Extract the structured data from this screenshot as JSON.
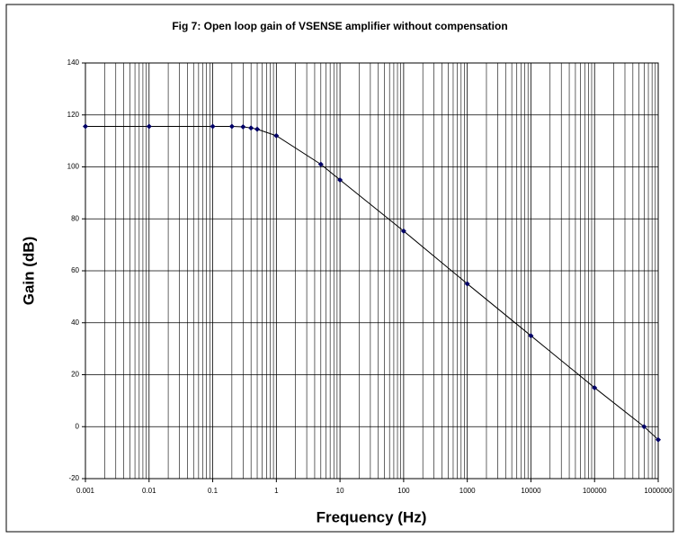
{
  "chart_data": {
    "type": "line",
    "title": "Fig 7: Open loop gain of VSENSE amplifier without compensation",
    "xlabel": "Frequency (Hz)",
    "ylabel": "Gain (dB)",
    "x": [
      0.001,
      0.01,
      0.1,
      0.2,
      0.3,
      0.4,
      0.5,
      1,
      5,
      10,
      100,
      1000,
      10000,
      100000,
      600000,
      1000000
    ],
    "series": [
      {
        "name": "Gain",
        "color": "#000000",
        "marker_color": "#000066",
        "values": [
          115.6,
          115.6,
          115.6,
          115.6,
          115.4,
          115,
          114.5,
          112,
          101,
          95,
          75.3,
          55,
          35,
          15,
          0,
          -5
        ]
      }
    ],
    "xscale": "log",
    "xlim": [
      0.001,
      1000000
    ],
    "xticks": [
      0.001,
      0.01,
      0.1,
      1,
      10,
      100,
      1000,
      10000,
      100000,
      1000000
    ],
    "ylim": [
      -20,
      140
    ],
    "yticks": [
      -20,
      0,
      20,
      40,
      60,
      80,
      100,
      120,
      140
    ],
    "grid": true,
    "minor_grid": true
  }
}
